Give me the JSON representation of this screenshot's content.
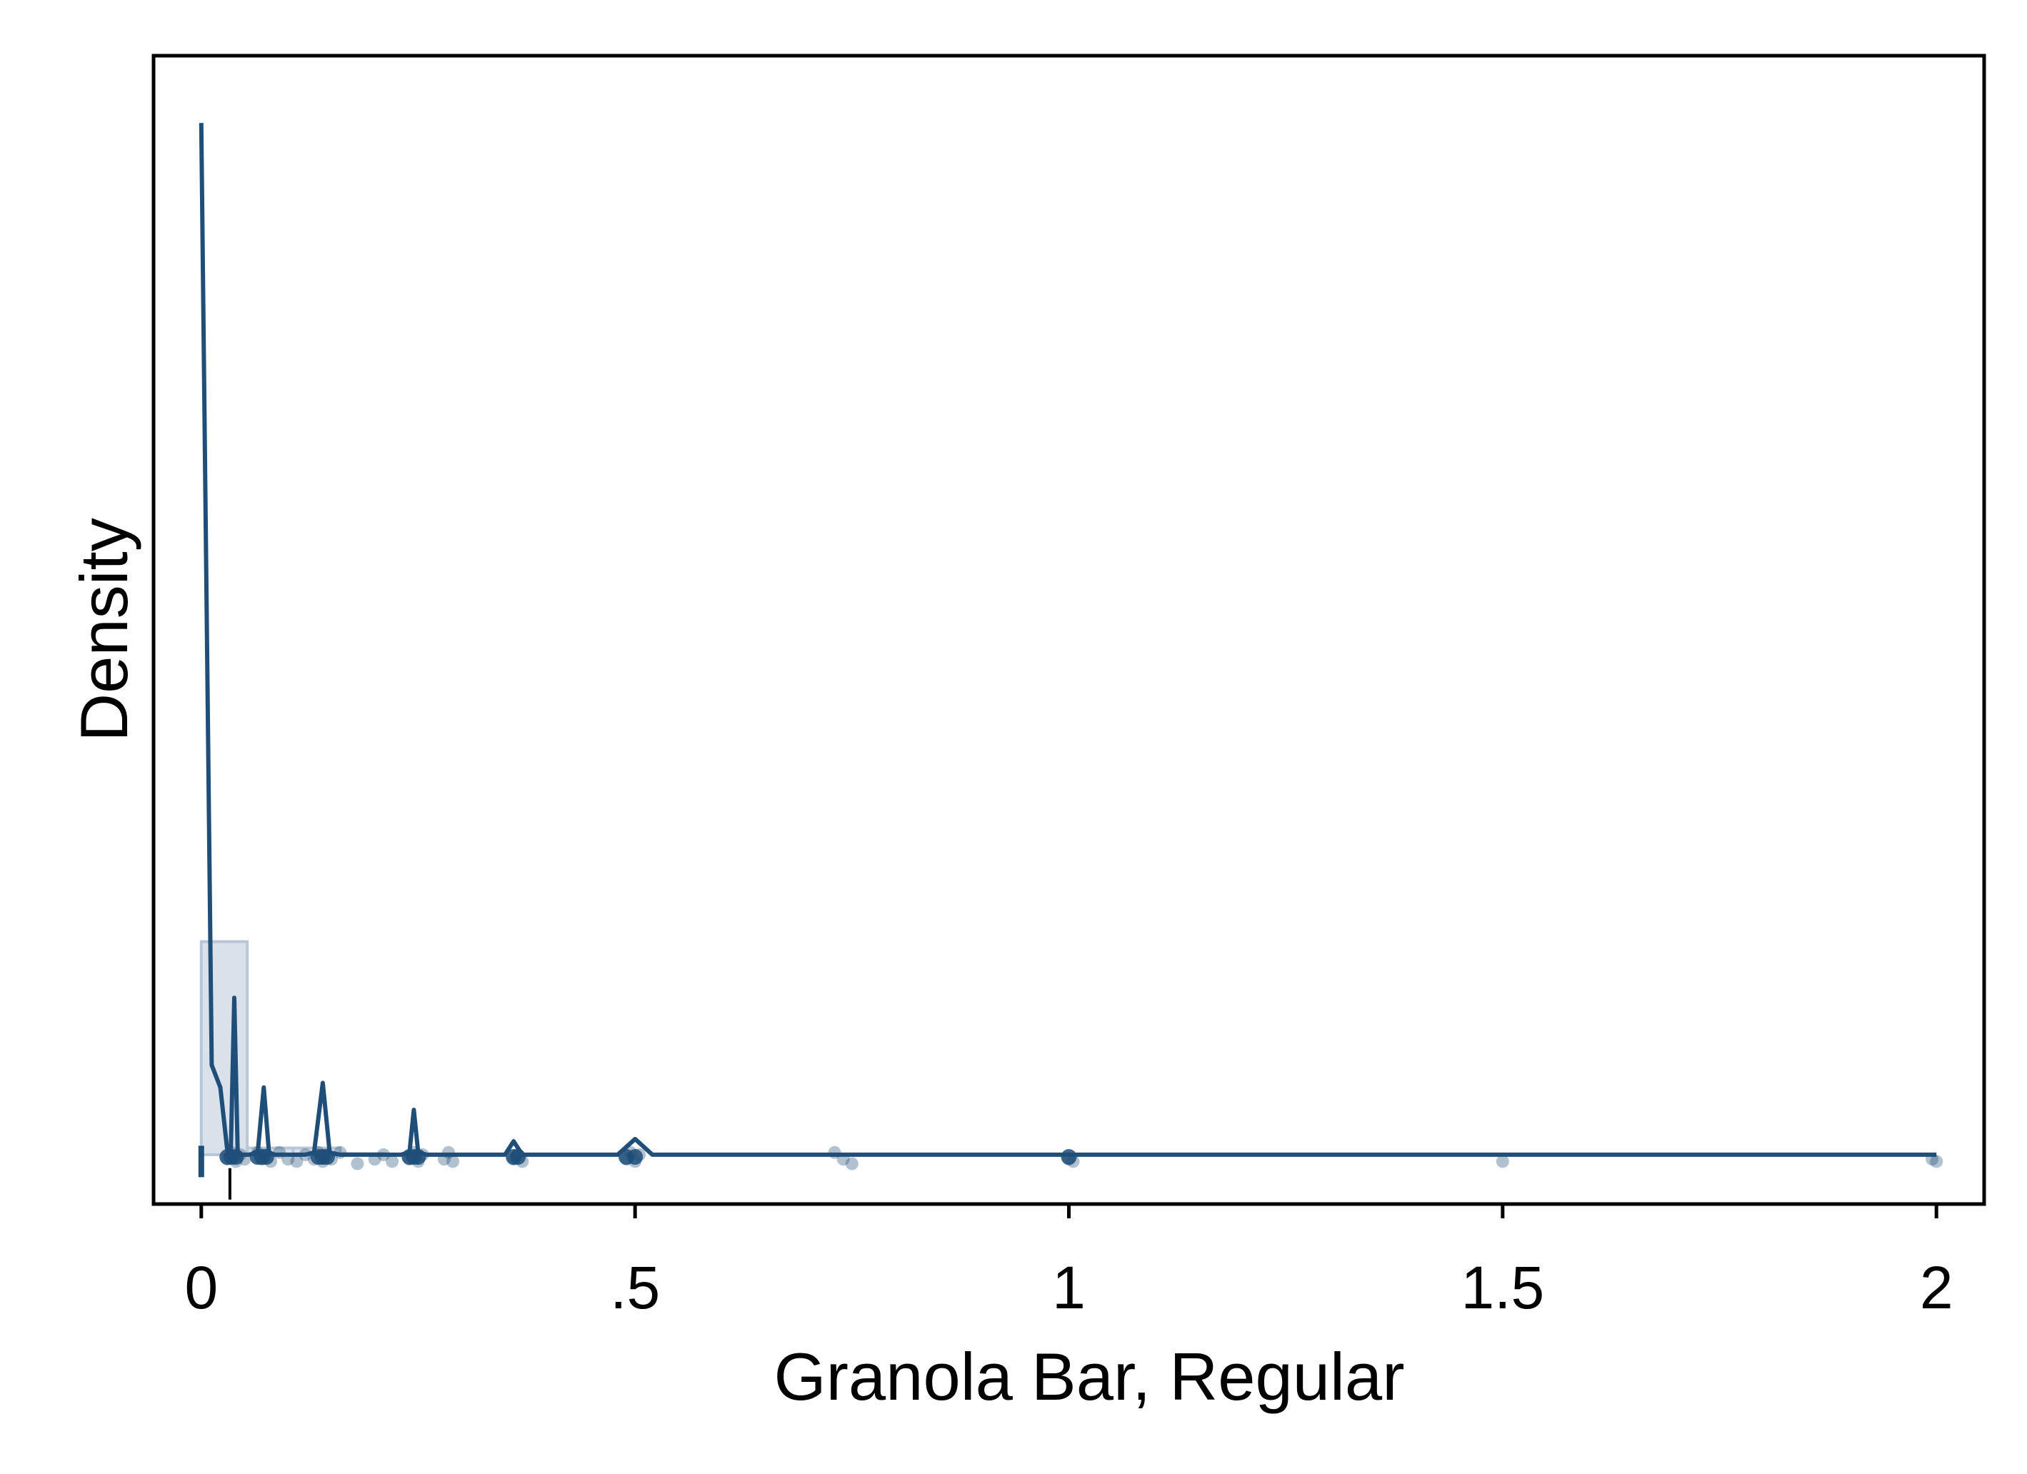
{
  "chart_data": {
    "type": "area",
    "title": "",
    "xlabel": "Granola Bar, Regular",
    "ylabel": "Density",
    "xlim": [
      -0.055,
      2.055
    ],
    "ylim": [
      -0.22,
      4.9
    ],
    "x_ticks": [
      {
        "value": 0,
        "label": "0"
      },
      {
        "value": 0.5,
        "label": ".5"
      },
      {
        "value": 1,
        "label": "1"
      },
      {
        "value": 1.5,
        "label": "1.5"
      },
      {
        "value": 2,
        "label": "2"
      }
    ],
    "y_ticks_shown": false,
    "grid": false,
    "legend": "none",
    "colors": {
      "line": "#1f4e79",
      "histogram_fill": "#d9e1ea",
      "histogram_stroke": "#b8c6d6",
      "points": "#1f4e79",
      "frame": "#000000"
    },
    "histogram": {
      "bins": [
        {
          "x0": 0.0,
          "x1": 0.053,
          "density": 0.95
        },
        {
          "x0": 0.053,
          "x1": 0.106,
          "density": 0.03
        },
        {
          "x0": 0.106,
          "x1": 0.16,
          "density": 0.03
        },
        {
          "x0": 0.16,
          "x1": 0.21,
          "density": 0.005
        }
      ]
    },
    "density_line": {
      "x": [
        0.0,
        0.012,
        0.022,
        0.03,
        0.034,
        0.038,
        0.042,
        0.046,
        0.055,
        0.065,
        0.072,
        0.078,
        0.085,
        0.12,
        0.13,
        0.14,
        0.148,
        0.16,
        0.23,
        0.24,
        0.245,
        0.25,
        0.26,
        0.35,
        0.36,
        0.37,
        0.48,
        0.5,
        0.52,
        1.0,
        2.0
      ],
      "y": [
        4.6,
        0.4,
        0.3,
        0.02,
        0.01,
        0.7,
        0.01,
        0.0,
        0.0,
        0.01,
        0.3,
        0.01,
        0.0,
        0.0,
        0.01,
        0.32,
        0.01,
        0.0,
        0.0,
        0.01,
        0.2,
        0.01,
        0.0,
        0.0,
        0.06,
        0.0,
        0.0,
        0.07,
        0.0,
        0.0,
        0.0
      ]
    },
    "points": {
      "x": [
        0.03,
        0.035,
        0.04,
        0.045,
        0.05,
        0.065,
        0.07,
        0.075,
        0.08,
        0.09,
        0.1,
        0.11,
        0.12,
        0.13,
        0.135,
        0.14,
        0.145,
        0.15,
        0.16,
        0.18,
        0.2,
        0.21,
        0.22,
        0.24,
        0.245,
        0.25,
        0.255,
        0.28,
        0.285,
        0.29,
        0.36,
        0.365,
        0.37,
        0.49,
        0.495,
        0.5,
        0.505,
        0.73,
        0.74,
        0.75,
        1.0,
        1.005,
        1.5,
        1.995,
        2.0
      ],
      "y": [
        -0.02,
        0.01,
        -0.03,
        0.0,
        -0.02,
        0.01,
        -0.02,
        0.0,
        -0.03,
        0.01,
        -0.02,
        -0.03,
        0.0,
        -0.02,
        0.01,
        -0.03,
        0.0,
        -0.02,
        0.01,
        -0.04,
        -0.02,
        0.0,
        -0.03,
        -0.02,
        0.01,
        -0.03,
        0.0,
        -0.02,
        0.01,
        -0.03,
        -0.02,
        0.0,
        -0.03,
        -0.02,
        0.01,
        -0.03,
        0.0,
        0.01,
        -0.02,
        -0.04,
        -0.02,
        -0.03,
        -0.03,
        -0.02,
        -0.03
      ]
    },
    "markers": [
      {
        "x": 0.0,
        "y_top": 0.04,
        "y_bottom": -0.1
      },
      {
        "x": 0.033,
        "y_top": -0.06,
        "y_bottom": -0.2
      }
    ]
  }
}
